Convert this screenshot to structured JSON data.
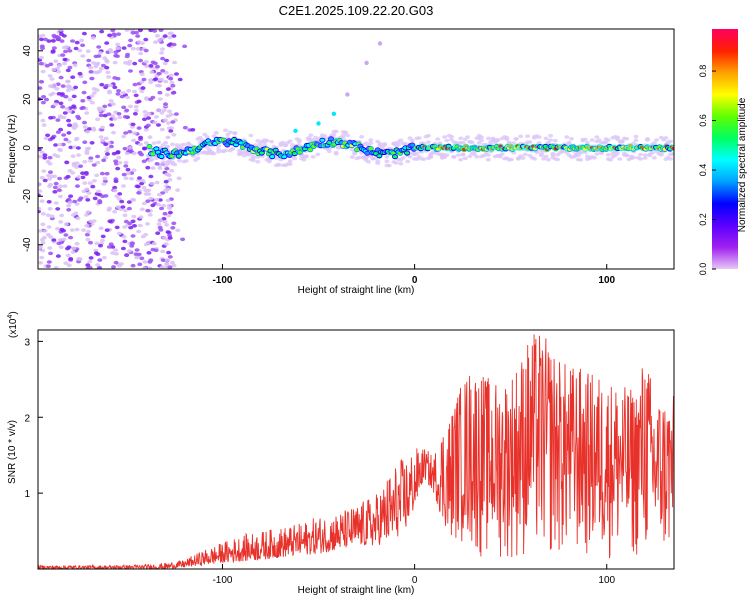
{
  "figure_title": "C2E1.2025.109.22.20.G03",
  "colors": {
    "background": "#ffffff",
    "axis": "#000000",
    "snr_line": "#e8312a",
    "scatter_fill": "#b892f2",
    "colorbar_stops": [
      "#e6c8f5",
      "#a020f0",
      "#5a00ff",
      "#0000ff",
      "#00a0ff",
      "#00ffff",
      "#00ff60",
      "#60ff00",
      "#ffff00",
      "#ffa000",
      "#ff2000",
      "#ff0060"
    ]
  },
  "chart_data": [
    {
      "type": "heatmap",
      "title": "",
      "xlabel": "Height of straight line (km)",
      "ylabel": "Frequency (Hz)",
      "xlim": [
        -196,
        135
      ],
      "ylim": [
        -50,
        49
      ],
      "x_ticks": [
        -100,
        0,
        100
      ],
      "x_tick_labels": [
        "-100",
        "0",
        "100"
      ],
      "y_ticks": [
        -40,
        -20,
        0,
        20,
        40
      ],
      "y_tick_labels": [
        "-40",
        "-20",
        "0",
        "20",
        "40"
      ],
      "grid": false,
      "colorbar": {
        "label": "Normalized spectral amplitude",
        "range": [
          0,
          0.97
        ],
        "ticks": [
          0.0,
          0.2,
          0.4,
          0.6,
          0.8
        ],
        "tick_labels": [
          "0.0",
          "0.2",
          "0.4",
          "0.6",
          "0.8"
        ]
      },
      "features": {
        "noise_region_x": [
          -196,
          -125
        ],
        "signal_trace_start_x": -138,
        "signal_center_frequency_hz": 0,
        "secondary_trace_points": [
          {
            "x": -62,
            "y": 7
          },
          {
            "x": -50,
            "y": 10
          },
          {
            "x": -42,
            "y": 14
          },
          {
            "x": -35,
            "y": 22
          },
          {
            "x": -25,
            "y": 35
          },
          {
            "x": -18,
            "y": 43
          }
        ]
      }
    },
    {
      "type": "line",
      "title": "",
      "xlabel": "Height of straight line (km)",
      "ylabel": "SNR (10 * v/v)",
      "y_multiplier_label": "(x10",
      "y_multiplier_exp": "4",
      "xlim": [
        -196,
        135
      ],
      "ylim": [
        0,
        3.15
      ],
      "x_ticks": [
        -100,
        0,
        100
      ],
      "x_tick_labels": [
        "-100",
        "0",
        "100"
      ],
      "y_ticks": [
        1,
        2,
        3
      ],
      "y_tick_labels": [
        "1",
        "2",
        "3"
      ],
      "grid": false,
      "series": [
        {
          "x": [
            -196,
            -180,
            -160,
            -140,
            -130,
            -120,
            -110,
            -100,
            -90,
            -80,
            -70,
            -60,
            -50,
            -40,
            -30,
            -20,
            -15,
            -10,
            -5,
            0,
            5,
            10,
            15,
            20,
            25,
            30,
            35,
            40,
            45,
            50,
            55,
            60,
            65,
            70,
            75,
            80,
            85,
            90,
            95,
            100,
            105,
            110,
            115,
            120,
            125,
            130,
            135
          ],
          "envelope": [
            0.05,
            0.05,
            0.05,
            0.06,
            0.08,
            0.12,
            0.25,
            0.35,
            0.45,
            0.5,
            0.55,
            0.6,
            0.7,
            0.75,
            0.85,
            1.0,
            1.2,
            1.4,
            1.5,
            1.6,
            1.6,
            1.5,
            2.0,
            2.2,
            2.5,
            2.7,
            2.6,
            2.5,
            2.5,
            2.6,
            2.8,
            3.1,
            3.15,
            3.0,
            2.8,
            2.7,
            2.7,
            2.6,
            2.6,
            2.5,
            2.5,
            2.4,
            2.4,
            2.9,
            2.3,
            2.3,
            2.3
          ],
          "floor": [
            0.0,
            0.0,
            0.0,
            0.0,
            0.0,
            0.02,
            0.05,
            0.08,
            0.1,
            0.12,
            0.15,
            0.18,
            0.2,
            0.25,
            0.3,
            0.3,
            0.35,
            0.4,
            0.5,
            0.8,
            1.2,
            1.0,
            0.6,
            0.4,
            0.3,
            0.2,
            0.1,
            0.1,
            0.1,
            0.1,
            0.1,
            0.1,
            0.1,
            0.1,
            0.1,
            0.1,
            0.1,
            0.1,
            0.1,
            0.1,
            0.1,
            0.1,
            0.1,
            0.1,
            0.1,
            0.1,
            0.1
          ]
        }
      ]
    }
  ]
}
